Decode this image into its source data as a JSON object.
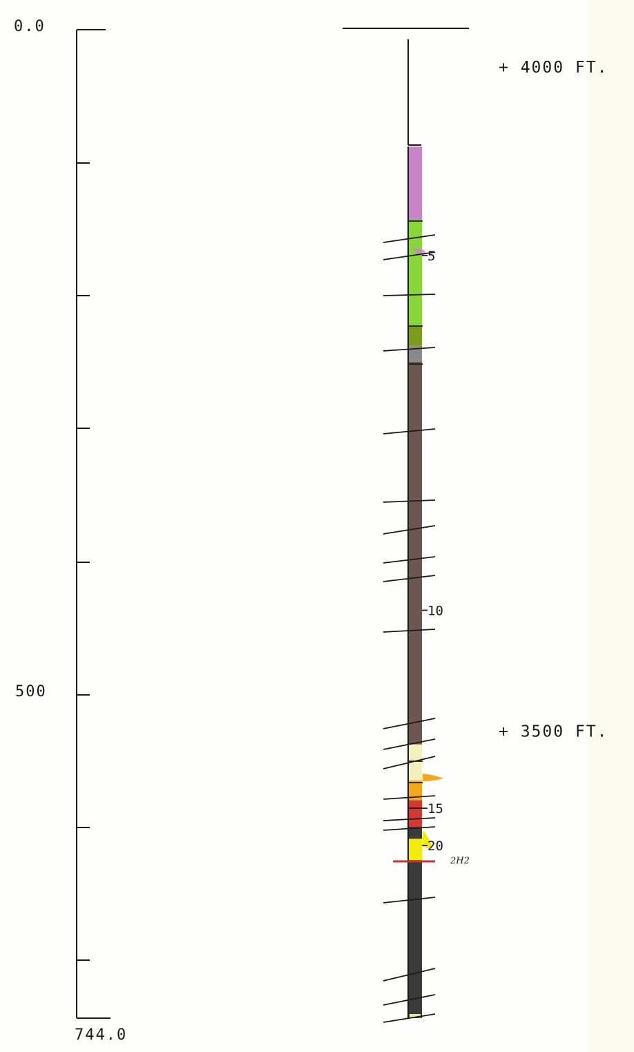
{
  "depth_scale": {
    "top_label": "0.0",
    "mid_label": "500",
    "bottom_label": "744.0",
    "top_value": 0,
    "mid_value": 500,
    "bottom_value": 744
  },
  "elevations": [
    {
      "label": "+ 4000 FT.",
      "depth": 28
    },
    {
      "label": "+ 3500 FT.",
      "depth": 528
    }
  ],
  "sample_numbers": [
    {
      "label": "5",
      "depth": 170
    },
    {
      "label": "10",
      "depth": 437
    },
    {
      "label": "15",
      "depth": 586
    },
    {
      "label": "20",
      "depth": 614
    }
  ],
  "annotation": {
    "text": "2H2",
    "color": "#7a5548"
  },
  "colors": {
    "ink": "#1a1a1a",
    "purple": "#c784c9",
    "green": "#8ad43c",
    "olive": "#7e9a1e",
    "gray": "#8a8a8a",
    "brown": "#6e5752",
    "cream": "#f4efbf",
    "orange": "#f2a81e",
    "red": "#cf3a34",
    "dark": "#3a3a3a",
    "yellow": "#f3ea10",
    "marker_red": "#c93232"
  },
  "intervals": [
    {
      "top": 88,
      "bottom": 143,
      "color": "purple"
    },
    {
      "top": 143,
      "bottom": 223,
      "color": "green"
    },
    {
      "top": 223,
      "bottom": 238,
      "color": "olive"
    },
    {
      "top": 238,
      "bottom": 250,
      "color": "gray"
    },
    {
      "top": 250,
      "bottom": 538,
      "color": "brown"
    },
    {
      "top": 538,
      "bottom": 565,
      "color": "cream"
    },
    {
      "top": 565,
      "bottom": 580,
      "color": "orange"
    },
    {
      "top": 580,
      "bottom": 600,
      "color": "red"
    },
    {
      "top": 600,
      "bottom": 609,
      "color": "dark"
    },
    {
      "top": 609,
      "bottom": 625,
      "color": "yellow"
    },
    {
      "top": 625,
      "bottom": 744,
      "color": "dark"
    }
  ]
}
